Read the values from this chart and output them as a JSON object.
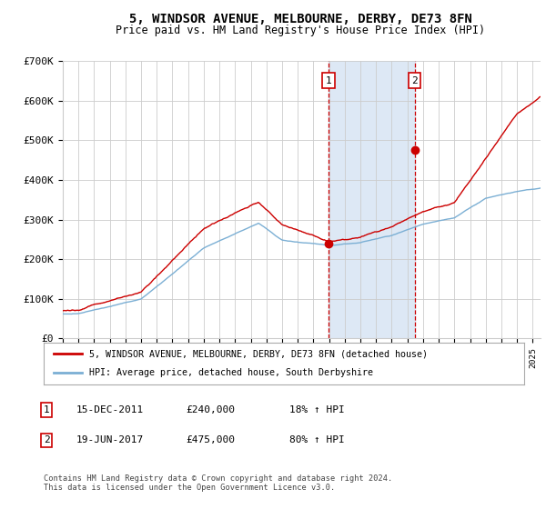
{
  "title": "5, WINDSOR AVENUE, MELBOURNE, DERBY, DE73 8FN",
  "subtitle": "Price paid vs. HM Land Registry's House Price Index (HPI)",
  "red_label": "5, WINDSOR AVENUE, MELBOURNE, DERBY, DE73 8FN (detached house)",
  "blue_label": "HPI: Average price, detached house, South Derbyshire",
  "footer": "Contains HM Land Registry data © Crown copyright and database right 2024.\nThis data is licensed under the Open Government Licence v3.0.",
  "transaction1_date": "15-DEC-2011",
  "transaction1_price": "£240,000",
  "transaction1_hpi": "18% ↑ HPI",
  "transaction1_year": 2011.96,
  "transaction1_price_val": 240000,
  "transaction2_date": "19-JUN-2017",
  "transaction2_price": "£475,000",
  "transaction2_hpi": "80% ↑ HPI",
  "transaction2_year": 2017.47,
  "transaction2_price_val": 475000,
  "yticks": [
    0,
    100000,
    200000,
    300000,
    400000,
    500000,
    600000,
    700000
  ],
  "yticklabels": [
    "£0",
    "£100K",
    "£200K",
    "£300K",
    "£400K",
    "£500K",
    "£600K",
    "£700K"
  ],
  "ylim": [
    0,
    700000
  ],
  "xlim_start": 1995,
  "xlim_end": 2025.5,
  "background_color": "#ffffff",
  "grid_color": "#cccccc",
  "shade_color": "#dde8f5",
  "red_color": "#cc0000",
  "blue_color": "#7bafd4"
}
